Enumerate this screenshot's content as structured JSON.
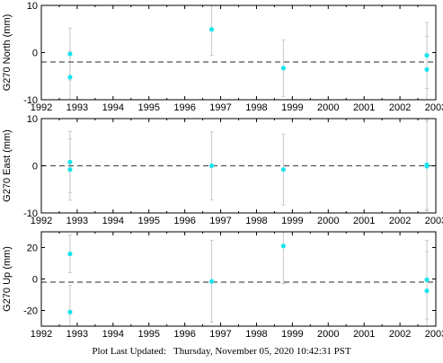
{
  "colors": {
    "point": "#19e3ee",
    "errorbar": "#c8c8c8",
    "mean_line": "#555555",
    "frame": "#000000"
  },
  "footer": {
    "label": "Plot Last Updated:",
    "timestamp": "Thursday, November 05, 2020 10:42:31 PST"
  },
  "chart_data": [
    {
      "type": "scatter",
      "ylabel": "G270 North (mm)",
      "xlim": [
        1992,
        2003
      ],
      "ylim": [
        -10,
        10
      ],
      "xticks": [
        1992,
        1993,
        1994,
        1995,
        1996,
        1997,
        1998,
        1999,
        2000,
        2001,
        2002,
        2003
      ],
      "yticks": [
        -10,
        0,
        10
      ],
      "mean": -2,
      "points": [
        {
          "x": 1992.8,
          "y": -0.3,
          "err": 5.5
        },
        {
          "x": 1992.8,
          "y": -5.2,
          "err": 5.5
        },
        {
          "x": 1996.75,
          "y": 4.9,
          "err": 5.5
        },
        {
          "x": 1998.75,
          "y": -3.3,
          "err": 6.0
        },
        {
          "x": 2002.75,
          "y": -0.6,
          "err": 7.0
        },
        {
          "x": 2002.75,
          "y": -3.6,
          "err": 7.0
        }
      ]
    },
    {
      "type": "scatter",
      "ylabel": "G270 East (mm)",
      "xlim": [
        1992,
        2003
      ],
      "ylim": [
        -10,
        10
      ],
      "xticks": [
        1992,
        1993,
        1994,
        1995,
        1996,
        1997,
        1998,
        1999,
        2000,
        2001,
        2002,
        2003
      ],
      "yticks": [
        -10,
        0,
        10
      ],
      "mean": 0,
      "points": [
        {
          "x": 1992.8,
          "y": 0.8,
          "err": 6.5
        },
        {
          "x": 1992.8,
          "y": -0.8,
          "err": 6.5
        },
        {
          "x": 1996.75,
          "y": 0.0,
          "err": 7.2
        },
        {
          "x": 1998.75,
          "y": -0.8,
          "err": 7.5
        },
        {
          "x": 2002.75,
          "y": 0.2,
          "err": 9.5
        },
        {
          "x": 2002.75,
          "y": -0.1,
          "err": 9.5
        }
      ]
    },
    {
      "type": "scatter",
      "ylabel": "G270 Up (mm)",
      "xlim": [
        1992,
        2003
      ],
      "ylim": [
        -30,
        30
      ],
      "xticks": [
        1992,
        1993,
        1994,
        1995,
        1996,
        1997,
        1998,
        1999,
        2000,
        2001,
        2002,
        2003
      ],
      "yticks": [
        -20,
        0,
        20
      ],
      "mean": -2,
      "points": [
        {
          "x": 1992.8,
          "y": 16,
          "err": 12
        },
        {
          "x": 1992.8,
          "y": -21,
          "err": 17
        },
        {
          "x": 1996.75,
          "y": -1.5,
          "err": 26
        },
        {
          "x": 1998.75,
          "y": 21,
          "err": 24
        },
        {
          "x": 2002.75,
          "y": -0.5,
          "err": 25
        },
        {
          "x": 2002.75,
          "y": -7.5,
          "err": 25
        }
      ]
    }
  ]
}
